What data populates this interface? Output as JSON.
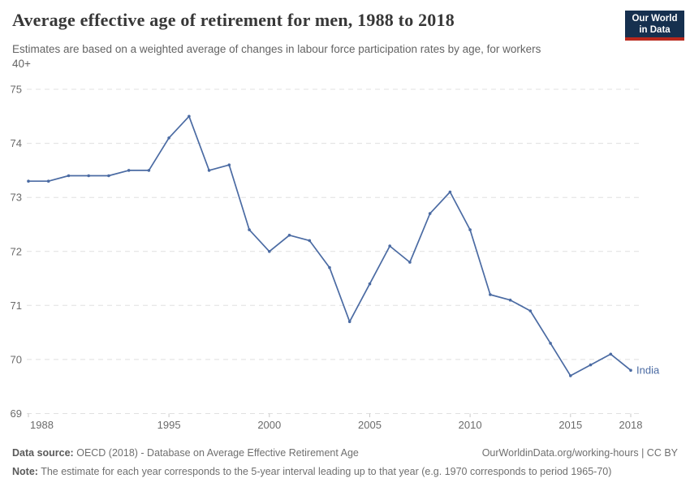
{
  "header": {
    "logo": {
      "line1": "Our World",
      "line2": "in Data",
      "bg_color": "#16304f",
      "accent_color": "#b9271c"
    }
  },
  "chart_data": {
    "type": "line",
    "title": "Average effective age of retirement for men, 1988 to 2018",
    "subtitle": "Estimates are based on a weighted average of changes in labour force participation rates by age, for workers\n40+",
    "x": [
      1988,
      1989,
      1990,
      1991,
      1992,
      1993,
      1994,
      1995,
      1996,
      1997,
      1998,
      1999,
      2000,
      2001,
      2002,
      2003,
      2004,
      2005,
      2006,
      2007,
      2008,
      2009,
      2010,
      2011,
      2012,
      2013,
      2014,
      2015,
      2016,
      2017,
      2018
    ],
    "series": [
      {
        "name": "India",
        "color": "#4b6ba3",
        "values": [
          73.3,
          73.3,
          73.4,
          73.4,
          73.4,
          73.5,
          73.5,
          74.1,
          74.5,
          73.5,
          73.6,
          72.4,
          72.0,
          72.3,
          72.2,
          71.7,
          70.7,
          71.4,
          72.1,
          71.8,
          72.7,
          73.1,
          72.4,
          71.2,
          71.1,
          70.9,
          70.3,
          69.7,
          69.9,
          70.1,
          69.8
        ]
      }
    ],
    "xlabel": "",
    "ylabel": "",
    "xlim": [
      1988,
      2018
    ],
    "ylim": [
      69,
      75
    ],
    "yticks": [
      69,
      70,
      71,
      72,
      73,
      74,
      75
    ],
    "xticks": [
      1988,
      1995,
      2000,
      2005,
      2010,
      2015,
      2018
    ],
    "grid": "horizontal-dashed",
    "legend_position": "end-of-line-label",
    "marker": "dot"
  },
  "footer": {
    "datasource_label": "Data source:",
    "datasource_text": "OECD (2018) - Database on Average Effective Retirement Age",
    "link": "OurWorldinData.org/working-hours | CC BY",
    "note_label": "Note:",
    "note_text": "The estimate for each year corresponds to the 5-year interval leading up to that year (e.g. 1970 corresponds to period 1965-70)"
  }
}
